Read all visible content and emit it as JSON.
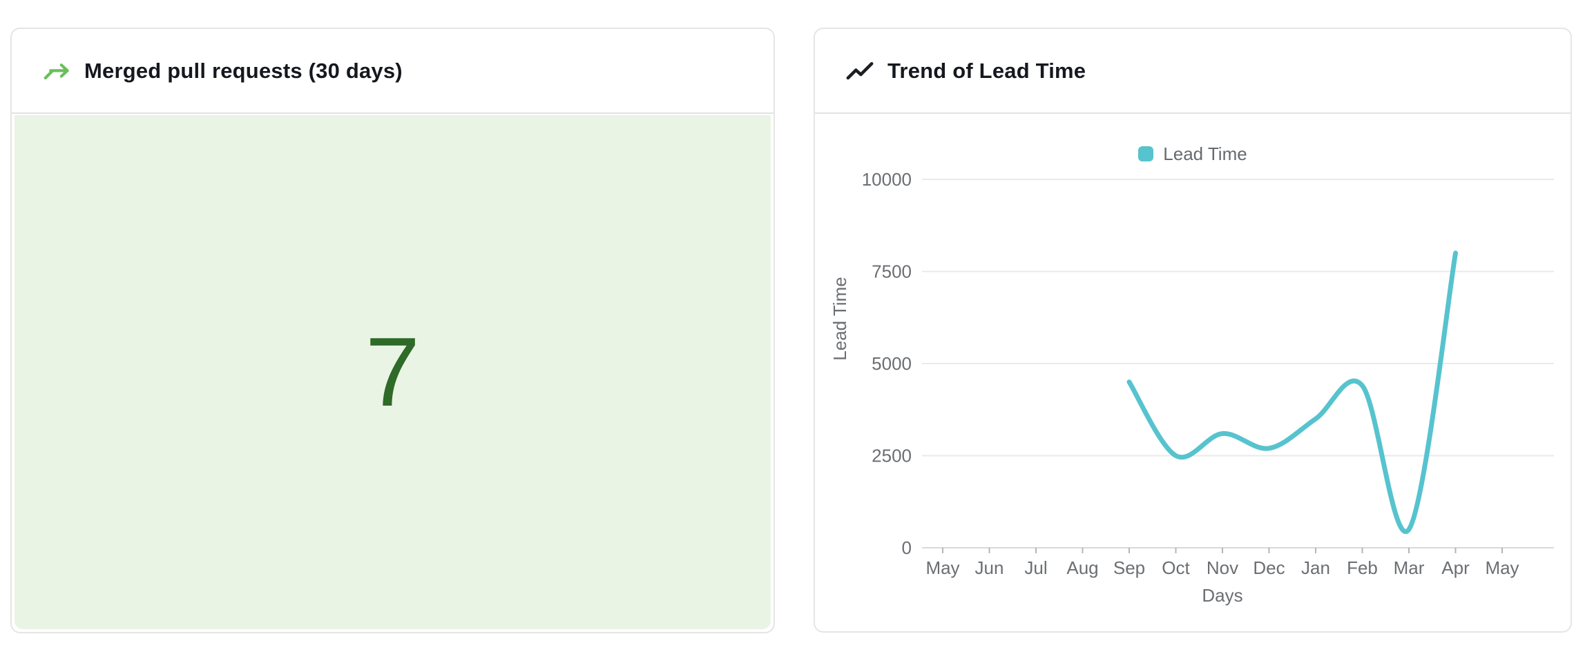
{
  "cards": {
    "merged_pr": {
      "title": "Merged pull requests (30 days)",
      "icon": "merge-icon",
      "value": "7"
    },
    "lead_time": {
      "title": "Trend of Lead Time",
      "icon": "trend-line-icon",
      "legend": "Lead Time"
    }
  },
  "chart_data": {
    "type": "line",
    "title": "Trend of Lead Time",
    "xlabel": "Days",
    "ylabel": "Lead Time",
    "categories": [
      "May",
      "Jun",
      "Jul",
      "Aug",
      "Sep",
      "Oct",
      "Nov",
      "Dec",
      "Jan",
      "Feb",
      "Mar",
      "Apr",
      "May"
    ],
    "series": [
      {
        "name": "Lead Time",
        "color": "#56c3ce",
        "values": [
          null,
          null,
          null,
          null,
          4500,
          2500,
          3100,
          2700,
          3500,
          4400,
          500,
          8000,
          null
        ]
      }
    ],
    "ylim": [
      0,
      10000
    ],
    "yticks": [
      0,
      2500,
      5000,
      7500,
      10000
    ],
    "grid": true,
    "legend_position": "top-center",
    "smooth": true
  },
  "colors": {
    "stat_value_green": "#2f6a28",
    "stat_bg_green": "#e9f4e4",
    "merge_icon_green": "#6abf5b",
    "line_teal": "#56c3ce",
    "axis_text_gray": "#6b6e72",
    "gridline_gray": "#eaeaea"
  }
}
